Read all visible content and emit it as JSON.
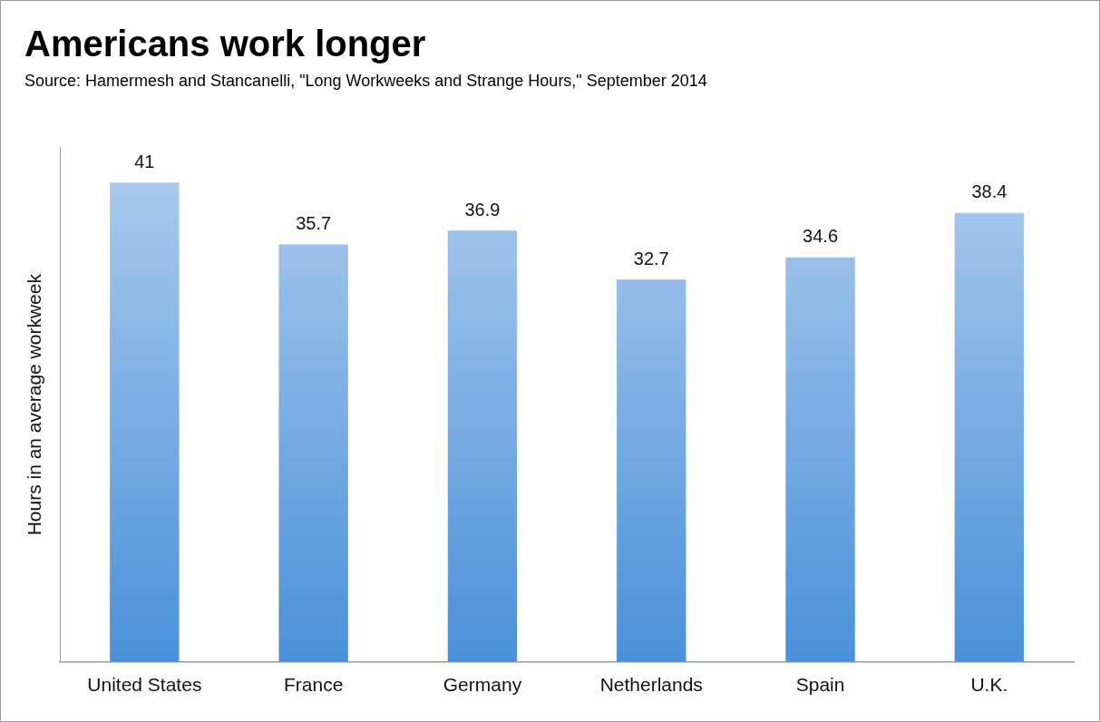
{
  "chart_data": {
    "type": "bar",
    "title": "Americans work longer",
    "subtitle": "Source: Hamermesh and Stancanelli, \"Long Workweeks and Strange Hours,\" September 2014",
    "y_label": "Hours in an average workweek",
    "categories": [
      "United States",
      "France",
      "Germany",
      "Netherlands",
      "Spain",
      "U.K."
    ],
    "values": [
      41,
      35.7,
      36.9,
      32.7,
      34.6,
      38.4
    ],
    "color": "#4a90d9",
    "ylim": [
      0,
      44
    ],
    "grid": false,
    "data_labels": true,
    "tick_labels": "x"
  }
}
